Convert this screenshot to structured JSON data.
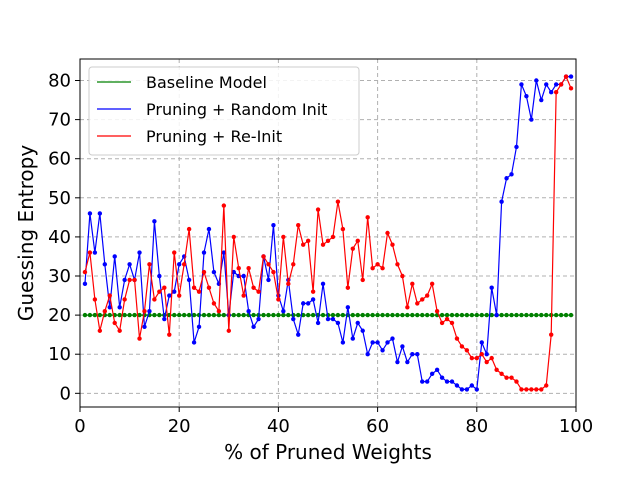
{
  "chart_data": {
    "type": "line",
    "xlabel": "% of Pruned Weights",
    "ylabel": "Guessing Entropy",
    "xlim": [
      0,
      100
    ],
    "ylim": [
      -3.5,
      85.5
    ],
    "x_ticks": [
      0,
      20,
      40,
      60,
      80,
      100
    ],
    "y_ticks": [
      0,
      10,
      20,
      30,
      40,
      50,
      60,
      70,
      80
    ],
    "grid": true,
    "legend_position": "top-left",
    "x": [
      1,
      2,
      3,
      4,
      5,
      6,
      7,
      8,
      9,
      10,
      11,
      12,
      13,
      14,
      15,
      16,
      17,
      18,
      19,
      20,
      21,
      22,
      23,
      24,
      25,
      26,
      27,
      28,
      29,
      30,
      31,
      32,
      33,
      34,
      35,
      36,
      37,
      38,
      39,
      40,
      41,
      42,
      43,
      44,
      45,
      46,
      47,
      48,
      49,
      50,
      51,
      52,
      53,
      54,
      55,
      56,
      57,
      58,
      59,
      60,
      61,
      62,
      63,
      64,
      65,
      66,
      67,
      68,
      69,
      70,
      71,
      72,
      73,
      74,
      75,
      76,
      77,
      78,
      79,
      80,
      81,
      82,
      83,
      84,
      85,
      86,
      87,
      88,
      89,
      90,
      91,
      92,
      93,
      94,
      95,
      96,
      97,
      98,
      99
    ],
    "series": [
      {
        "name": "Baseline Model",
        "color": "#008000",
        "values": [
          20,
          20,
          20,
          20,
          20,
          20,
          20,
          20,
          20,
          20,
          20,
          20,
          20,
          20,
          20,
          20,
          20,
          20,
          20,
          20,
          20,
          20,
          20,
          20,
          20,
          20,
          20,
          20,
          20,
          20,
          20,
          20,
          20,
          20,
          20,
          20,
          20,
          20,
          20,
          20,
          20,
          20,
          20,
          20,
          20,
          20,
          20,
          20,
          20,
          20,
          20,
          20,
          20,
          20,
          20,
          20,
          20,
          20,
          20,
          20,
          20,
          20,
          20,
          20,
          20,
          20,
          20,
          20,
          20,
          20,
          20,
          20,
          20,
          20,
          20,
          20,
          20,
          20,
          20,
          20,
          20,
          20,
          20,
          20,
          20,
          20,
          20,
          20,
          20,
          20,
          20,
          20,
          20,
          20,
          20,
          20,
          20,
          20,
          20
        ]
      },
      {
        "name": "Pruning + Random Init",
        "color": "#0000ff",
        "values": [
          28,
          46,
          36,
          46,
          33,
          22,
          35,
          22,
          29,
          33,
          29,
          36,
          17,
          21,
          44,
          30,
          19,
          25,
          26,
          33,
          35,
          29,
          13,
          17,
          36,
          42,
          31,
          28,
          36,
          20,
          31,
          30,
          30,
          21,
          17,
          19,
          35,
          29,
          43,
          25,
          21,
          29,
          19,
          15,
          23,
          23,
          24,
          18,
          28,
          19,
          19,
          18,
          13,
          22,
          14,
          18,
          16,
          10,
          13,
          13,
          11,
          13,
          14,
          8,
          12,
          8,
          10,
          10,
          3,
          3,
          5,
          6,
          4,
          3,
          3,
          2,
          1,
          1,
          2,
          1,
          13,
          10,
          27,
          20,
          49,
          55,
          56,
          63,
          79,
          76,
          70,
          80,
          75,
          79,
          77,
          79,
          79,
          81,
          81
        ]
      },
      {
        "name": "Pruning + Re-Init",
        "color": "#ff0000",
        "values": [
          31,
          36,
          24,
          16,
          21,
          25,
          18,
          16,
          24,
          29,
          29,
          14,
          21,
          33,
          24,
          26,
          27,
          15,
          36,
          25,
          33,
          42,
          27,
          26,
          31,
          27,
          23,
          21,
          48,
          16,
          40,
          32,
          25,
          32,
          27,
          26,
          35,
          33,
          31,
          24,
          40,
          28,
          33,
          43,
          38,
          39,
          26,
          47,
          38,
          39,
          40,
          49,
          42,
          27,
          37,
          39,
          29,
          45,
          32,
          33,
          32,
          41,
          38,
          33,
          30,
          22,
          28,
          23,
          24,
          25,
          28,
          21,
          18,
          19,
          18,
          14,
          12,
          11,
          9,
          9,
          10,
          8,
          9,
          6,
          5,
          4,
          4,
          3,
          1,
          1,
          1,
          1,
          1,
          2,
          15,
          77,
          79,
          81,
          78
        ]
      }
    ]
  }
}
